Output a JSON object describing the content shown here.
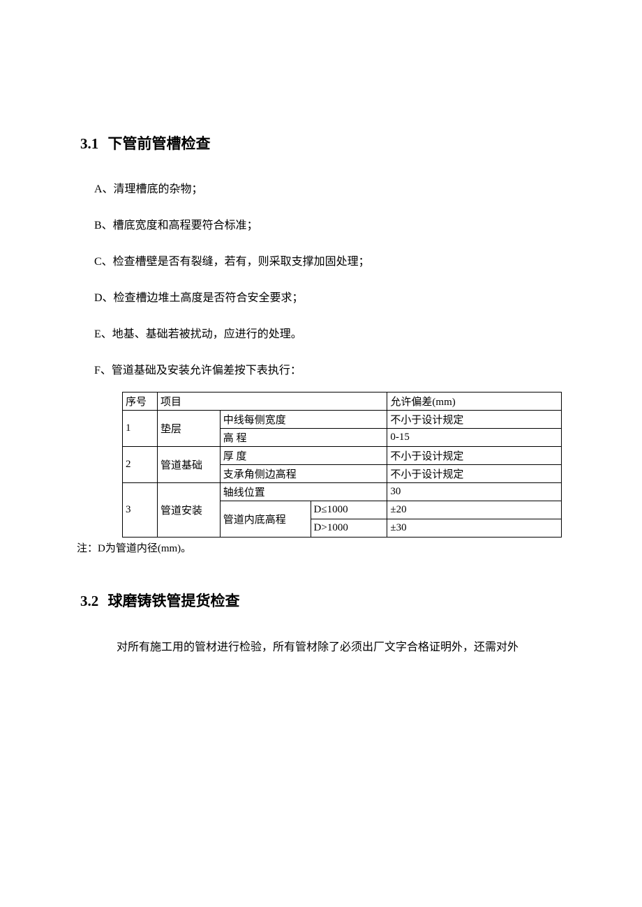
{
  "section31": {
    "number": "3.1",
    "title": "下管前管槽检查",
    "items": {
      "a": "A、清理槽底的杂物；",
      "b": "B、槽底宽度和高程要符合标准；",
      "c": "C、检查槽壁是否有裂缝，若有，则采取支撑加固处理；",
      "d": "D、检查槽边堆土高度是否符合安全要求；",
      "e": "E、地基、基础若被扰动，应进行的处理。",
      "f": "F、管道基础及安装允许偏差按下表执行："
    }
  },
  "table": {
    "headers": {
      "seq": "序号",
      "item": "项目",
      "tolerance": "允许偏差(mm)"
    },
    "row1": {
      "seq": "1",
      "item": "垫层",
      "sub1": "中线每侧宽度",
      "tol1": "不小于设计规定",
      "sub2": "高  程",
      "tol2": "0-15"
    },
    "row2": {
      "seq": "2",
      "item": "管道基础",
      "sub1": "厚  度",
      "tol1": "不小于设计规定",
      "sub2": "支承角侧边高程",
      "tol2": "不小于设计规定"
    },
    "row3": {
      "seq": "3",
      "item": "管道安装",
      "sub1": "轴线位置",
      "tol1": "30",
      "sub2": "管道内底高程",
      "cond1": "D≤1000",
      "tolc1": "±20",
      "cond2": "D>1000",
      "tolc2": "±30"
    },
    "note": "注：D为管道内径(mm)。"
  },
  "section32": {
    "number": "3.2",
    "title": "球磨铸铁管提货检查",
    "body": "对所有施工用的管材进行检验，所有管材除了必须出厂文字合格证明外，还需对外"
  },
  "style": {
    "background_color": "#ffffff",
    "text_color": "#000000",
    "border_color": "#000000",
    "heading_fontsize": 21,
    "body_fontsize": 16,
    "table_fontsize": 15
  }
}
